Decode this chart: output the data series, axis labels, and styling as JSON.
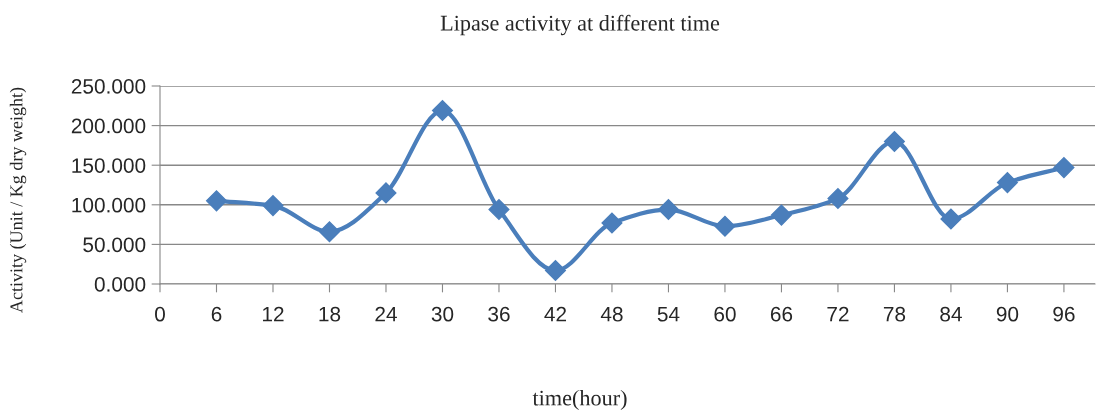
{
  "chart_data": {
    "type": "line",
    "title": "Lipase activity at different time",
    "xlabel": "time(hour)",
    "ylabel": "Activity (Unit / Kg dry weight)",
    "x": [
      6,
      12,
      18,
      24,
      30,
      36,
      42,
      48,
      54,
      60,
      66,
      72,
      78,
      84,
      90,
      96
    ],
    "series": [
      {
        "color": "#4a7ebb",
        "values": [
          105,
          99,
          66,
          115,
          219,
          94,
          17,
          77,
          94,
          73,
          87,
          108,
          180,
          82,
          128,
          147
        ]
      }
    ],
    "xlim": [
      0,
      99.3
    ],
    "xticks": [
      0,
      6,
      12,
      18,
      24,
      30,
      36,
      42,
      48,
      54,
      60,
      66,
      72,
      78,
      84,
      90,
      96
    ],
    "ylim": [
      0,
      250
    ],
    "yticks": [
      {
        "value": 0,
        "label": "0.000"
      },
      {
        "value": 50,
        "label": "50.000"
      },
      {
        "value": 100,
        "label": "100.000"
      },
      {
        "value": 150,
        "label": "150.000"
      },
      {
        "value": 200,
        "label": "200.000"
      },
      {
        "value": 250,
        "label": "250.000"
      }
    ],
    "grid": "y",
    "marker": "diamond",
    "line_style": "solid",
    "legend": false
  }
}
